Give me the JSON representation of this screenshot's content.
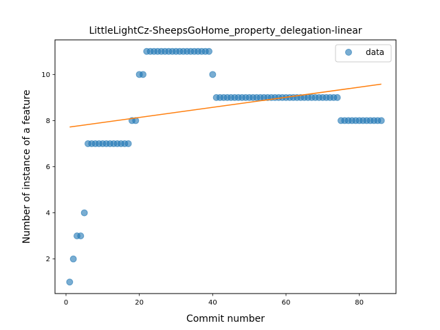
{
  "chart_data": {
    "type": "scatter",
    "title": "LittleLightCz-SheepsGoHome_property_delegation-linear",
    "xlabel": "Commit number",
    "ylabel": "Number of instance of a feature",
    "xlim": [
      -3,
      90
    ],
    "ylim": [
      0.5,
      11.5
    ],
    "xticks": [
      0,
      20,
      40,
      60,
      80
    ],
    "yticks": [
      2,
      4,
      6,
      8,
      10
    ],
    "grid": false,
    "legend_position": "top-right",
    "series": [
      {
        "name": "data",
        "kind": "scatter",
        "color": "#1f77b4",
        "x": [
          1,
          2,
          3,
          4,
          5,
          6,
          7,
          8,
          9,
          10,
          11,
          12,
          13,
          14,
          15,
          16,
          17,
          18,
          19,
          20,
          21,
          22,
          23,
          24,
          25,
          26,
          27,
          28,
          29,
          30,
          31,
          32,
          33,
          34,
          35,
          36,
          37,
          38,
          39,
          40,
          41,
          42,
          43,
          44,
          45,
          46,
          47,
          48,
          49,
          50,
          51,
          52,
          53,
          54,
          55,
          56,
          57,
          58,
          59,
          60,
          61,
          62,
          63,
          64,
          65,
          66,
          67,
          68,
          69,
          70,
          71,
          72,
          73,
          74,
          75,
          76,
          77,
          78,
          79,
          80,
          81,
          82,
          83,
          84,
          85,
          86
        ],
        "y": [
          1,
          2,
          3,
          3,
          4,
          7,
          7,
          7,
          7,
          7,
          7,
          7,
          7,
          7,
          7,
          7,
          7,
          8,
          8,
          10,
          10,
          11,
          11,
          11,
          11,
          11,
          11,
          11,
          11,
          11,
          11,
          11,
          11,
          11,
          11,
          11,
          11,
          11,
          11,
          10,
          9,
          9,
          9,
          9,
          9,
          9,
          9,
          9,
          9,
          9,
          9,
          9,
          9,
          9,
          9,
          9,
          9,
          9,
          9,
          9,
          9,
          9,
          9,
          9,
          9,
          9,
          9,
          9,
          9,
          9,
          9,
          9,
          9,
          9,
          8,
          8,
          8,
          8,
          8,
          8,
          8,
          8,
          8,
          8,
          8,
          8
        ]
      },
      {
        "kind": "line",
        "color": "#ff7f0e",
        "x": [
          1,
          86
        ],
        "y": [
          7.72,
          9.58
        ]
      }
    ]
  }
}
